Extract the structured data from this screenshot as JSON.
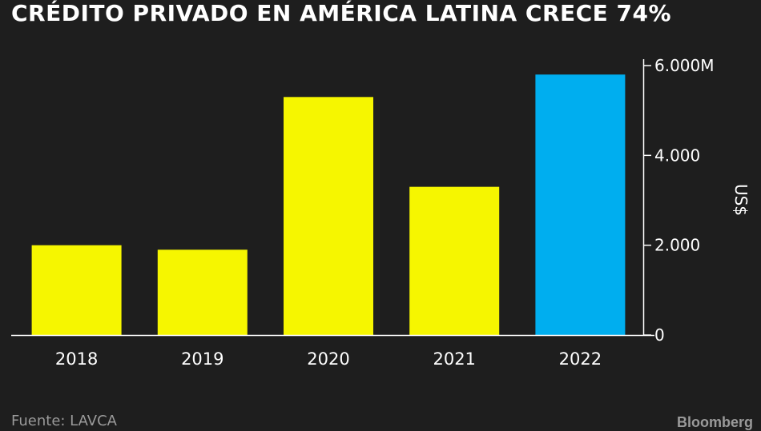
{
  "chart_data": {
    "type": "bar",
    "title": "CRÉDITO PRIVADO EN AMÉRICA LATINA CRECE 74%",
    "categories": [
      "2018",
      "2019",
      "2020",
      "2021",
      "2022"
    ],
    "values": [
      2000,
      1900,
      5300,
      3300,
      5800
    ],
    "bar_colors": [
      "#f6f600",
      "#f6f600",
      "#f6f600",
      "#f6f600",
      "#00aeef"
    ],
    "ylabel": "US$",
    "ylim": [
      0,
      6000
    ],
    "yticks": [
      0,
      2000,
      4000,
      6000
    ],
    "ytick_labels": [
      "0",
      "2.000",
      "4.000",
      "6.000"
    ],
    "ytick_suffix_top": "M",
    "yaxis_position": "right",
    "grid": false,
    "source": "Fuente: LAVCA",
    "brand": "Bloomberg"
  },
  "colors": {
    "background": "#1e1e1e",
    "text": "#ffffff",
    "muted": "#9a9a9a"
  }
}
